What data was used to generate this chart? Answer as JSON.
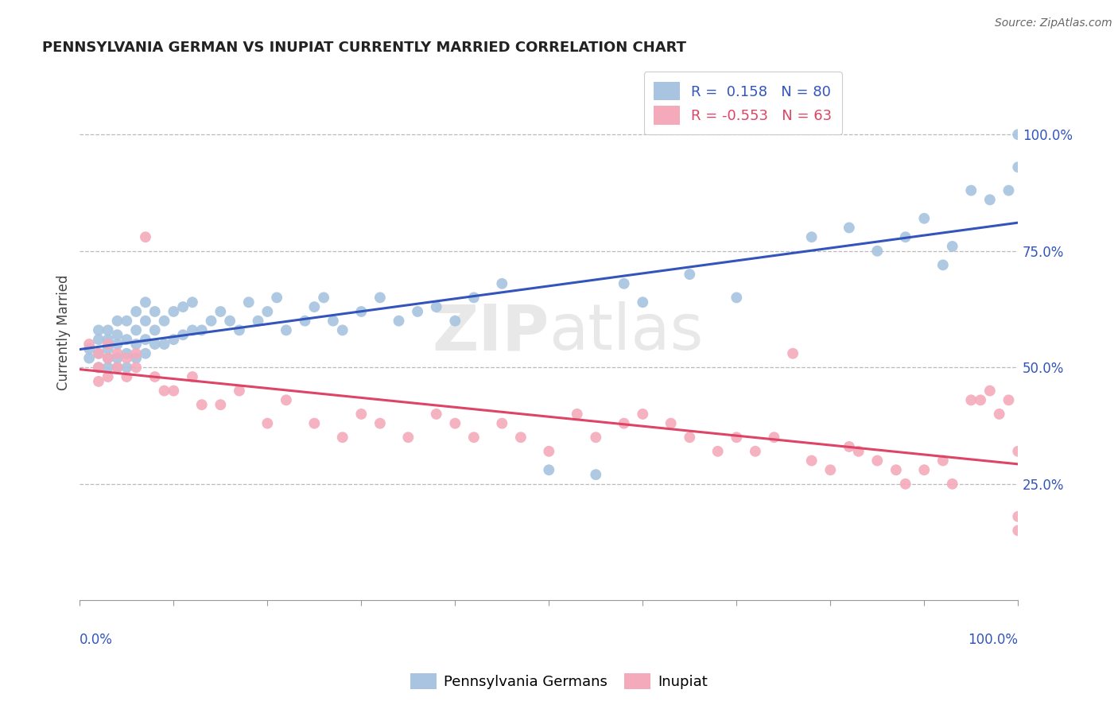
{
  "title": "PENNSYLVANIA GERMAN VS INUPIAT CURRENTLY MARRIED CORRELATION CHART",
  "source": "Source: ZipAtlas.com",
  "ylabel": "Currently Married",
  "r_blue": 0.158,
  "n_blue": 80,
  "r_pink": -0.553,
  "n_pink": 63,
  "blue_color": "#A8C4E0",
  "pink_color": "#F4AABB",
  "blue_line_color": "#3355BB",
  "pink_line_color": "#DD4466",
  "watermark": "ZIPatlas",
  "ytick_labels": [
    "25.0%",
    "50.0%",
    "75.0%",
    "100.0%"
  ],
  "ytick_values": [
    0.25,
    0.5,
    0.75,
    1.0
  ],
  "blue_x": [
    0.01,
    0.01,
    0.02,
    0.02,
    0.02,
    0.02,
    0.03,
    0.03,
    0.03,
    0.03,
    0.03,
    0.04,
    0.04,
    0.04,
    0.04,
    0.04,
    0.05,
    0.05,
    0.05,
    0.05,
    0.06,
    0.06,
    0.06,
    0.06,
    0.07,
    0.07,
    0.07,
    0.07,
    0.08,
    0.08,
    0.08,
    0.09,
    0.09,
    0.1,
    0.1,
    0.11,
    0.11,
    0.12,
    0.12,
    0.13,
    0.14,
    0.15,
    0.16,
    0.17,
    0.18,
    0.19,
    0.2,
    0.21,
    0.22,
    0.24,
    0.25,
    0.26,
    0.27,
    0.28,
    0.3,
    0.32,
    0.34,
    0.36,
    0.38,
    0.4,
    0.42,
    0.45,
    0.5,
    0.55,
    0.58,
    0.6,
    0.65,
    0.7,
    0.78,
    0.82,
    0.85,
    0.88,
    0.9,
    0.92,
    0.93,
    0.95,
    0.97,
    0.99,
    1.0,
    1.0
  ],
  "blue_y": [
    0.52,
    0.54,
    0.5,
    0.53,
    0.56,
    0.58,
    0.5,
    0.52,
    0.54,
    0.56,
    0.58,
    0.5,
    0.52,
    0.55,
    0.57,
    0.6,
    0.5,
    0.53,
    0.56,
    0.6,
    0.52,
    0.55,
    0.58,
    0.62,
    0.53,
    0.56,
    0.6,
    0.64,
    0.55,
    0.58,
    0.62,
    0.55,
    0.6,
    0.56,
    0.62,
    0.57,
    0.63,
    0.58,
    0.64,
    0.58,
    0.6,
    0.62,
    0.6,
    0.58,
    0.64,
    0.6,
    0.62,
    0.65,
    0.58,
    0.6,
    0.63,
    0.65,
    0.6,
    0.58,
    0.62,
    0.65,
    0.6,
    0.62,
    0.63,
    0.6,
    0.65,
    0.68,
    0.28,
    0.27,
    0.68,
    0.64,
    0.7,
    0.65,
    0.78,
    0.8,
    0.75,
    0.78,
    0.82,
    0.72,
    0.76,
    0.88,
    0.86,
    0.88,
    0.93,
    1.0
  ],
  "pink_x": [
    0.01,
    0.02,
    0.02,
    0.02,
    0.03,
    0.03,
    0.03,
    0.04,
    0.04,
    0.05,
    0.05,
    0.06,
    0.06,
    0.07,
    0.08,
    0.09,
    0.1,
    0.12,
    0.13,
    0.15,
    0.17,
    0.2,
    0.22,
    0.25,
    0.28,
    0.3,
    0.32,
    0.35,
    0.38,
    0.4,
    0.42,
    0.45,
    0.47,
    0.5,
    0.53,
    0.55,
    0.58,
    0.6,
    0.63,
    0.65,
    0.68,
    0.7,
    0.72,
    0.74,
    0.76,
    0.78,
    0.8,
    0.82,
    0.83,
    0.85,
    0.87,
    0.88,
    0.9,
    0.92,
    0.93,
    0.95,
    0.96,
    0.97,
    0.98,
    0.99,
    1.0,
    1.0,
    1.0
  ],
  "pink_y": [
    0.55,
    0.5,
    0.53,
    0.47,
    0.48,
    0.52,
    0.55,
    0.5,
    0.53,
    0.48,
    0.52,
    0.5,
    0.53,
    0.78,
    0.48,
    0.45,
    0.45,
    0.48,
    0.42,
    0.42,
    0.45,
    0.38,
    0.43,
    0.38,
    0.35,
    0.4,
    0.38,
    0.35,
    0.4,
    0.38,
    0.35,
    0.38,
    0.35,
    0.32,
    0.4,
    0.35,
    0.38,
    0.4,
    0.38,
    0.35,
    0.32,
    0.35,
    0.32,
    0.35,
    0.53,
    0.3,
    0.28,
    0.33,
    0.32,
    0.3,
    0.28,
    0.25,
    0.28,
    0.3,
    0.25,
    0.43,
    0.43,
    0.45,
    0.4,
    0.43,
    0.32,
    0.18,
    0.15
  ]
}
